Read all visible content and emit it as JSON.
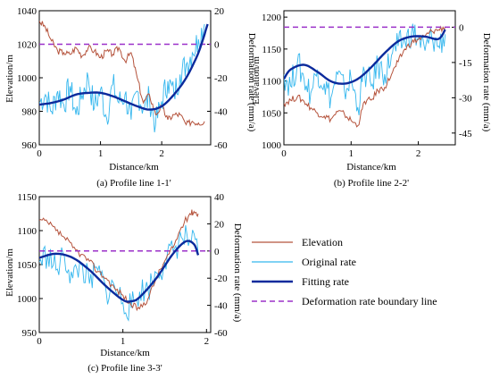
{
  "colors": {
    "elevation": "#b5533c",
    "original_rate": "#35b7ee",
    "fitting_rate": "#0b2a9c",
    "boundary": "#9b30c9",
    "axis": "#000000"
  },
  "legend": {
    "placement": "bottom-right",
    "items": [
      {
        "label": "Elevation",
        "color": "#b5533c",
        "style": "thin-line"
      },
      {
        "label": "Original rate",
        "color": "#35b7ee",
        "style": "thin-line"
      },
      {
        "label": "Fitting rate",
        "color": "#0b2a9c",
        "style": "thick-line"
      },
      {
        "label": "Deformation rate boundary line",
        "color": "#9b30c9",
        "style": "dashed"
      }
    ]
  },
  "chart_data": [
    {
      "type": "line",
      "caption": "(a)   Profile line 1-1'",
      "xlabel": "Distance/km",
      "ylabel_left": "Elevation/m",
      "ylabel_right": "Deformation rate (mm/a)",
      "xlim": [
        0,
        2.8
      ],
      "ylim_left": [
        960,
        1040
      ],
      "ylim_right": [
        -60,
        20
      ],
      "xticks": [
        0,
        1,
        2
      ],
      "yticks_left": [
        960,
        980,
        1000,
        1020,
        1040
      ],
      "yticks_right": [
        -60,
        -40,
        -20,
        0,
        20
      ],
      "boundary_rate": 0,
      "elevation": {
        "x": [
          0,
          0.1,
          0.2,
          0.3,
          0.4,
          0.5,
          0.6,
          0.7,
          0.8,
          0.9,
          1.0,
          1.1,
          1.2,
          1.3,
          1.4,
          1.5,
          1.6,
          1.7,
          1.8,
          1.9,
          2.0,
          2.1,
          2.2,
          2.3,
          2.4,
          2.5,
          2.6,
          2.7
        ],
        "values": [
          1034,
          1030,
          1022,
          1016,
          1015,
          1014,
          1018,
          1013,
          1018,
          1016,
          1012,
          1016,
          1014,
          1018,
          1010,
          1015,
          1000,
          985,
          990,
          978,
          983,
          975,
          978,
          978,
          972,
          974,
          973,
          974
        ]
      },
      "original_rate": {
        "x": [
          0,
          0.1,
          0.2,
          0.3,
          0.4,
          0.5,
          0.6,
          0.7,
          0.8,
          0.9,
          1.0,
          1.1,
          1.2,
          1.3,
          1.4,
          1.5,
          1.6,
          1.7,
          1.8,
          1.9,
          2.0,
          2.1,
          2.2,
          2.3,
          2.4,
          2.5,
          2.6,
          2.7
        ],
        "values": [
          -35,
          -30,
          -40,
          -28,
          -36,
          -25,
          -42,
          -30,
          -20,
          -38,
          -27,
          -44,
          -24,
          -35,
          -30,
          -45,
          -28,
          -38,
          -32,
          -48,
          -34,
          -22,
          -30,
          -18,
          -12,
          -5,
          3,
          12
        ]
      },
      "fitting_rate": {
        "x": [
          0,
          0.2,
          0.4,
          0.6,
          0.8,
          1.0,
          1.2,
          1.4,
          1.6,
          1.8,
          2.0,
          2.2,
          2.4,
          2.6,
          2.75
        ],
        "values": [
          -36,
          -35,
          -33,
          -30,
          -29,
          -29,
          -31,
          -34,
          -37,
          -39,
          -37,
          -30,
          -20,
          -5,
          12
        ]
      }
    },
    {
      "type": "line",
      "caption": "(b)   Profile line 2-2'",
      "xlabel": "Distance/km",
      "ylabel_left": "Elevation/m",
      "ylabel_right": "Deformation rate (mm/a)",
      "xlim": [
        0,
        2.55
      ],
      "ylim_left": [
        1000,
        1210
      ],
      "ylim_right": [
        -50,
        7
      ],
      "xticks": [
        0,
        1,
        2
      ],
      "yticks_left": [
        1000,
        1050,
        1100,
        1150,
        1200
      ],
      "yticks_right": [
        -45,
        -30,
        -15,
        0
      ],
      "boundary_rate": 0,
      "elevation": {
        "x": [
          0,
          0.1,
          0.2,
          0.3,
          0.4,
          0.5,
          0.6,
          0.7,
          0.8,
          0.9,
          1.0,
          1.1,
          1.2,
          1.3,
          1.4,
          1.5,
          1.6,
          1.7,
          1.8,
          1.9,
          2.0,
          2.1,
          2.2,
          2.3,
          2.4
        ],
        "values": [
          1065,
          1070,
          1075,
          1068,
          1058,
          1050,
          1045,
          1040,
          1052,
          1048,
          1038,
          1030,
          1068,
          1070,
          1085,
          1090,
          1110,
          1130,
          1150,
          1160,
          1165,
          1170,
          1178,
          1180,
          1185
        ]
      },
      "original_rate": {
        "x": [
          0,
          0.1,
          0.2,
          0.3,
          0.4,
          0.5,
          0.6,
          0.7,
          0.8,
          0.9,
          1.0,
          1.1,
          1.2,
          1.3,
          1.4,
          1.5,
          1.6,
          1.7,
          1.8,
          1.9,
          2.0,
          2.1,
          2.2,
          2.3,
          2.4
        ],
        "values": [
          -20,
          -25,
          -15,
          -22,
          -28,
          -18,
          -24,
          -30,
          -20,
          -27,
          -22,
          -34,
          -19,
          -25,
          -16,
          -20,
          -12,
          -8,
          -6,
          -2,
          -5,
          -10,
          -4,
          -8,
          -3
        ]
      },
      "fitting_rate": {
        "x": [
          0,
          0.1,
          0.3,
          0.5,
          0.7,
          0.9,
          1.1,
          1.3,
          1.5,
          1.7,
          1.9,
          2.1,
          2.3,
          2.4
        ],
        "values": [
          -22,
          -18,
          -16,
          -19,
          -23,
          -24,
          -22,
          -17,
          -11,
          -6,
          -4,
          -4,
          -5,
          -1
        ]
      }
    },
    {
      "type": "line",
      "caption": "(c)   Profile line 3-3'",
      "xlabel": "Distance/km",
      "ylabel_left": "Elevation/m",
      "ylabel_right": "Deformation rate (mm/a)",
      "xlim": [
        0,
        2.05
      ],
      "ylim_left": [
        950,
        1150
      ],
      "ylim_right": [
        -60,
        40
      ],
      "xticks": [
        0,
        1,
        2
      ],
      "yticks_left": [
        950,
        1000,
        1050,
        1100,
        1150
      ],
      "yticks_right": [
        -60,
        -40,
        -20,
        0,
        20,
        40
      ],
      "boundary_rate": 0,
      "elevation": {
        "x": [
          0,
          0.1,
          0.2,
          0.3,
          0.4,
          0.5,
          0.6,
          0.7,
          0.8,
          0.9,
          1.0,
          1.1,
          1.2,
          1.3,
          1.4,
          1.5,
          1.6,
          1.7,
          1.8,
          1.85,
          1.9
        ],
        "values": [
          1115,
          1112,
          1100,
          1090,
          1075,
          1065,
          1055,
          1040,
          1030,
          1015,
          1005,
          990,
          985,
          1000,
          1030,
          1055,
          1075,
          1105,
          1125,
          1128,
          1125
        ]
      },
      "original_rate": {
        "x": [
          0,
          0.1,
          0.2,
          0.3,
          0.4,
          0.5,
          0.6,
          0.7,
          0.8,
          0.9,
          1.0,
          1.1,
          1.2,
          1.3,
          1.4,
          1.5,
          1.6,
          1.7,
          1.8,
          1.9
        ],
        "values": [
          -8,
          -2,
          -14,
          -4,
          -20,
          -10,
          -24,
          -14,
          -30,
          -26,
          -38,
          -42,
          -30,
          -28,
          -16,
          -8,
          0,
          10,
          8,
          -2
        ]
      },
      "fitting_rate": {
        "x": [
          0,
          0.2,
          0.4,
          0.6,
          0.8,
          1.0,
          1.1,
          1.2,
          1.4,
          1.6,
          1.75,
          1.85,
          1.9
        ],
        "values": [
          -5,
          -2,
          -5,
          -14,
          -26,
          -36,
          -37,
          -34,
          -20,
          -2,
          7,
          5,
          -3
        ]
      }
    }
  ]
}
